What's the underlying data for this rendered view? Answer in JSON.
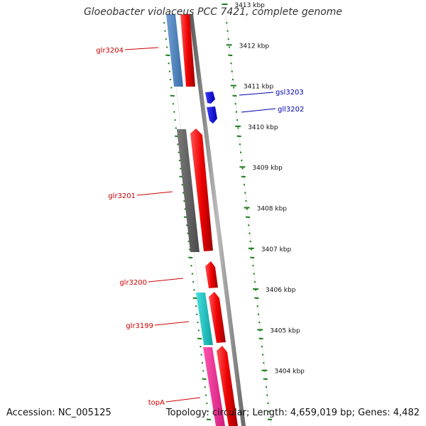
{
  "title": "Gloeobacter violaceus PCC 7421, complete genome",
  "footer": {
    "accession": "Accession: NC_005125",
    "summary": "Topology: circular; Length: 4,659,019 bp; Genes: 4,482"
  },
  "colors": {
    "backbone": "#8c8c8c",
    "ticks": "#1e7d1e",
    "reverse_label": "#cc0000",
    "forward_label": "#0000aa"
  },
  "scale": {
    "unit": "kbp",
    "ticks": [
      {
        "label": "3413 kbp"
      },
      {
        "label": "3412 kbp"
      },
      {
        "label": "3411 kbp"
      },
      {
        "label": "3410 kbp"
      },
      {
        "label": "3409 kbp"
      },
      {
        "label": "3408 kbp"
      },
      {
        "label": "3407 kbp"
      },
      {
        "label": "3406 kbp"
      },
      {
        "label": "3405 kbp"
      },
      {
        "label": "3404 kbp"
      }
    ]
  },
  "features": [
    {
      "name": "glr3204",
      "strand": "reverse",
      "color": "#4a7fbf"
    },
    {
      "name": "gsl3203",
      "strand": "forward",
      "color": "#1a1aee"
    },
    {
      "name": "gll3202",
      "strand": "forward",
      "color": "#1a1aee"
    },
    {
      "name": "glr3201",
      "strand": "reverse",
      "color": "#666666"
    },
    {
      "name": "glr3200",
      "strand": "reverse",
      "color": "#ee1111"
    },
    {
      "name": "glr3199",
      "strand": "reverse",
      "color": "#22c4c4"
    },
    {
      "name": "topA",
      "strand": "reverse",
      "color": "#ee2b95"
    }
  ]
}
